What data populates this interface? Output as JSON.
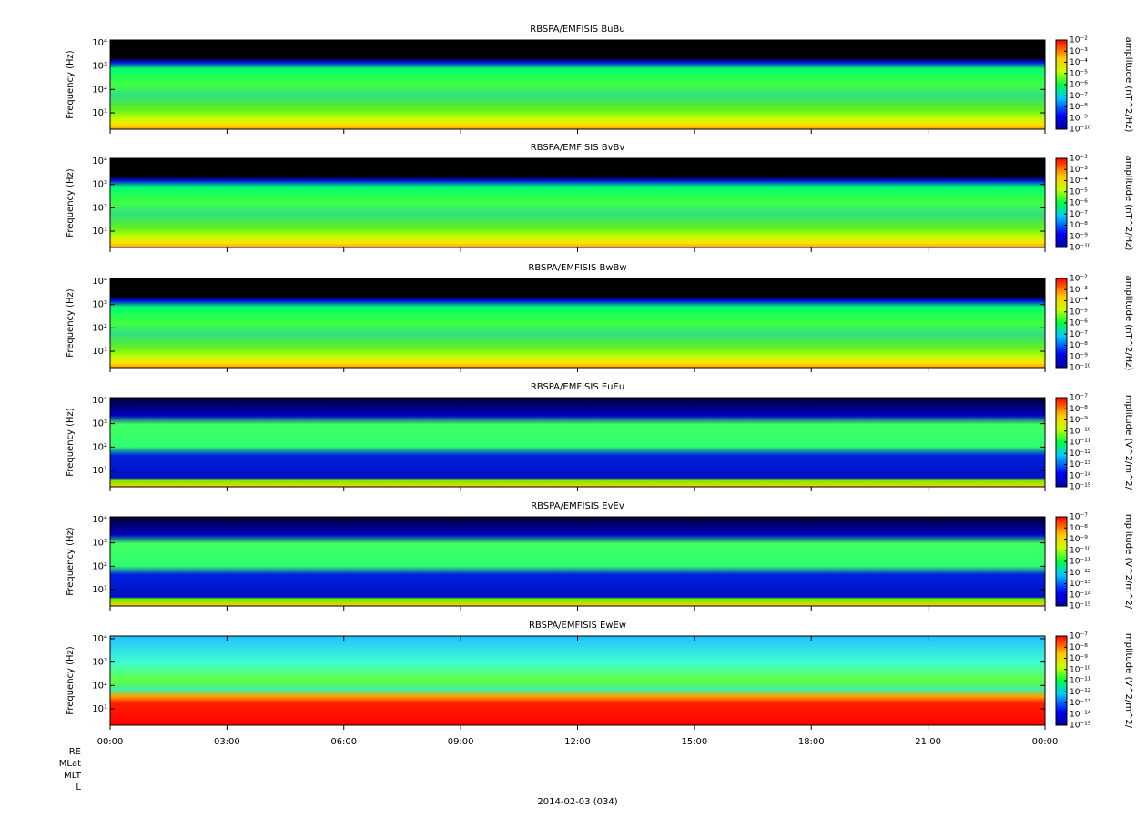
{
  "chart_data": {
    "type": "spectrogram",
    "xlim": [
      0,
      24
    ],
    "xticks": [
      {
        "value": 0,
        "label": "00:00"
      },
      {
        "value": 3,
        "label": "03:00"
      },
      {
        "value": 6,
        "label": "06:00"
      },
      {
        "value": 9,
        "label": "09:00"
      },
      {
        "value": 12,
        "label": "12:00"
      },
      {
        "value": 15,
        "label": "15:00"
      },
      {
        "value": 18,
        "label": "18:00"
      },
      {
        "value": 21,
        "label": "21:00"
      },
      {
        "value": 24,
        "label": "00:00"
      }
    ],
    "xlabel": "2014-02-03 (034)",
    "ephemeris_labels": [
      "RE",
      "MLat",
      "MLT",
      "L"
    ],
    "colormap": "jet",
    "log_y": true,
    "panels": [
      {
        "title": "RBSPA/EMFISIS  BuBu",
        "ylabel": "Frequency (Hz)",
        "ylim": [
          2,
          13000
        ],
        "yticks": [
          {
            "value": 10,
            "label": "10¹"
          },
          {
            "value": 100,
            "label": "10²"
          },
          {
            "value": 1000,
            "label": "10³"
          },
          {
            "value": 10000,
            "label": "10⁴"
          }
        ],
        "zlim": [
          1e-10,
          0.01
        ],
        "zlabel": "amplitude (nT^2/Hz)",
        "zticks": [
          {
            "value": 1e-10,
            "label": "10⁻¹⁰"
          },
          {
            "value": 1e-09,
            "label": "10⁻⁹"
          },
          {
            "value": 1e-08,
            "label": "10⁻⁸"
          },
          {
            "value": 1e-07,
            "label": "10⁻⁷"
          },
          {
            "value": 1e-06,
            "label": "10⁻⁶"
          },
          {
            "value": 1e-05,
            "label": "10⁻⁵"
          },
          {
            "value": 0.0001,
            "label": "10⁻⁴"
          },
          {
            "value": 0.001,
            "label": "10⁻³"
          },
          {
            "value": 0.01,
            "label": "10⁻²"
          }
        ]
      },
      {
        "title": "RBSPA/EMFISIS  BvBv",
        "ylabel": "Frequency (Hz)",
        "ylim": [
          2,
          13000
        ],
        "yticks": [
          {
            "value": 10,
            "label": "10¹"
          },
          {
            "value": 100,
            "label": "10²"
          },
          {
            "value": 1000,
            "label": "10³"
          },
          {
            "value": 10000,
            "label": "10⁴"
          }
        ],
        "zlim": [
          1e-10,
          0.01
        ],
        "zlabel": "amplitude (nT^2/Hz)",
        "zticks": [
          {
            "value": 1e-10,
            "label": "10⁻¹⁰"
          },
          {
            "value": 1e-09,
            "label": "10⁻⁹"
          },
          {
            "value": 1e-08,
            "label": "10⁻⁸"
          },
          {
            "value": 1e-07,
            "label": "10⁻⁷"
          },
          {
            "value": 1e-06,
            "label": "10⁻⁶"
          },
          {
            "value": 1e-05,
            "label": "10⁻⁵"
          },
          {
            "value": 0.0001,
            "label": "10⁻⁴"
          },
          {
            "value": 0.001,
            "label": "10⁻³"
          },
          {
            "value": 0.01,
            "label": "10⁻²"
          }
        ]
      },
      {
        "title": "RBSPA/EMFISIS  BwBw",
        "ylabel": "Frequency (Hz)",
        "ylim": [
          2,
          13000
        ],
        "yticks": [
          {
            "value": 10,
            "label": "10¹"
          },
          {
            "value": 100,
            "label": "10²"
          },
          {
            "value": 1000,
            "label": "10³"
          },
          {
            "value": 10000,
            "label": "10⁴"
          }
        ],
        "zlim": [
          1e-10,
          0.01
        ],
        "zlabel": "amplitude (nT^2/Hz)",
        "zticks": [
          {
            "value": 1e-10,
            "label": "10⁻¹⁰"
          },
          {
            "value": 1e-09,
            "label": "10⁻⁹"
          },
          {
            "value": 1e-08,
            "label": "10⁻⁸"
          },
          {
            "value": 1e-07,
            "label": "10⁻⁷"
          },
          {
            "value": 1e-06,
            "label": "10⁻⁶"
          },
          {
            "value": 1e-05,
            "label": "10⁻⁵"
          },
          {
            "value": 0.0001,
            "label": "10⁻⁴"
          },
          {
            "value": 0.001,
            "label": "10⁻³"
          },
          {
            "value": 0.01,
            "label": "10⁻²"
          }
        ]
      },
      {
        "title": "RBSPA/EMFISIS  EuEu",
        "ylabel": "Frequency (Hz)",
        "ylim": [
          2,
          13000
        ],
        "yticks": [
          {
            "value": 10,
            "label": "10¹"
          },
          {
            "value": 100,
            "label": "10²"
          },
          {
            "value": 1000,
            "label": "10³"
          },
          {
            "value": 10000,
            "label": "10⁴"
          }
        ],
        "zlim": [
          1e-15,
          1e-07
        ],
        "zlabel": "mplitude (V^2/m^2/",
        "zticks": [
          {
            "value": 1e-15,
            "label": "10⁻¹⁵"
          },
          {
            "value": 1e-14,
            "label": "10⁻¹⁴"
          },
          {
            "value": 1e-13,
            "label": "10⁻¹³"
          },
          {
            "value": 1e-12,
            "label": "10⁻¹²"
          },
          {
            "value": 1e-11,
            "label": "10⁻¹¹"
          },
          {
            "value": 1e-10,
            "label": "10⁻¹⁰"
          },
          {
            "value": 1e-09,
            "label": "10⁻⁹"
          },
          {
            "value": 1e-08,
            "label": "10⁻⁸"
          },
          {
            "value": 1e-07,
            "label": "10⁻⁷"
          }
        ]
      },
      {
        "title": "RBSPA/EMFISIS  EvEv",
        "ylabel": "Frequency (Hz)",
        "ylim": [
          2,
          13000
        ],
        "yticks": [
          {
            "value": 10,
            "label": "10¹"
          },
          {
            "value": 100,
            "label": "10²"
          },
          {
            "value": 1000,
            "label": "10³"
          },
          {
            "value": 10000,
            "label": "10⁴"
          }
        ],
        "zlim": [
          1e-15,
          1e-07
        ],
        "zlabel": "mplitude (V^2/m^2/",
        "zticks": [
          {
            "value": 1e-15,
            "label": "10⁻¹⁵"
          },
          {
            "value": 1e-14,
            "label": "10⁻¹⁴"
          },
          {
            "value": 1e-13,
            "label": "10⁻¹³"
          },
          {
            "value": 1e-12,
            "label": "10⁻¹²"
          },
          {
            "value": 1e-11,
            "label": "10⁻¹¹"
          },
          {
            "value": 1e-10,
            "label": "10⁻¹⁰"
          },
          {
            "value": 1e-09,
            "label": "10⁻⁹"
          },
          {
            "value": 1e-08,
            "label": "10⁻⁸"
          },
          {
            "value": 1e-07,
            "label": "10⁻⁷"
          }
        ]
      },
      {
        "title": "RBSPA/EMFISIS  EwEw",
        "ylabel": "Frequency (Hz)",
        "ylim": [
          2,
          13000
        ],
        "yticks": [
          {
            "value": 10,
            "label": "10¹"
          },
          {
            "value": 100,
            "label": "10²"
          },
          {
            "value": 1000,
            "label": "10³"
          },
          {
            "value": 10000,
            "label": "10⁴"
          }
        ],
        "zlim": [
          1e-15,
          1e-07
        ],
        "zlabel": "mplitude (V^2/m^2/",
        "zticks": [
          {
            "value": 1e-15,
            "label": "10⁻¹⁵"
          },
          {
            "value": 1e-14,
            "label": "10⁻¹⁴"
          },
          {
            "value": 1e-13,
            "label": "10⁻¹³"
          },
          {
            "value": 1e-12,
            "label": "10⁻¹²"
          },
          {
            "value": 1e-11,
            "label": "10⁻¹¹"
          },
          {
            "value": 1e-10,
            "label": "10⁻¹⁰"
          },
          {
            "value": 1e-09,
            "label": "10⁻⁹"
          },
          {
            "value": 1e-08,
            "label": "10⁻⁸"
          },
          {
            "value": 1e-07,
            "label": "10⁻⁷"
          }
        ]
      }
    ]
  }
}
